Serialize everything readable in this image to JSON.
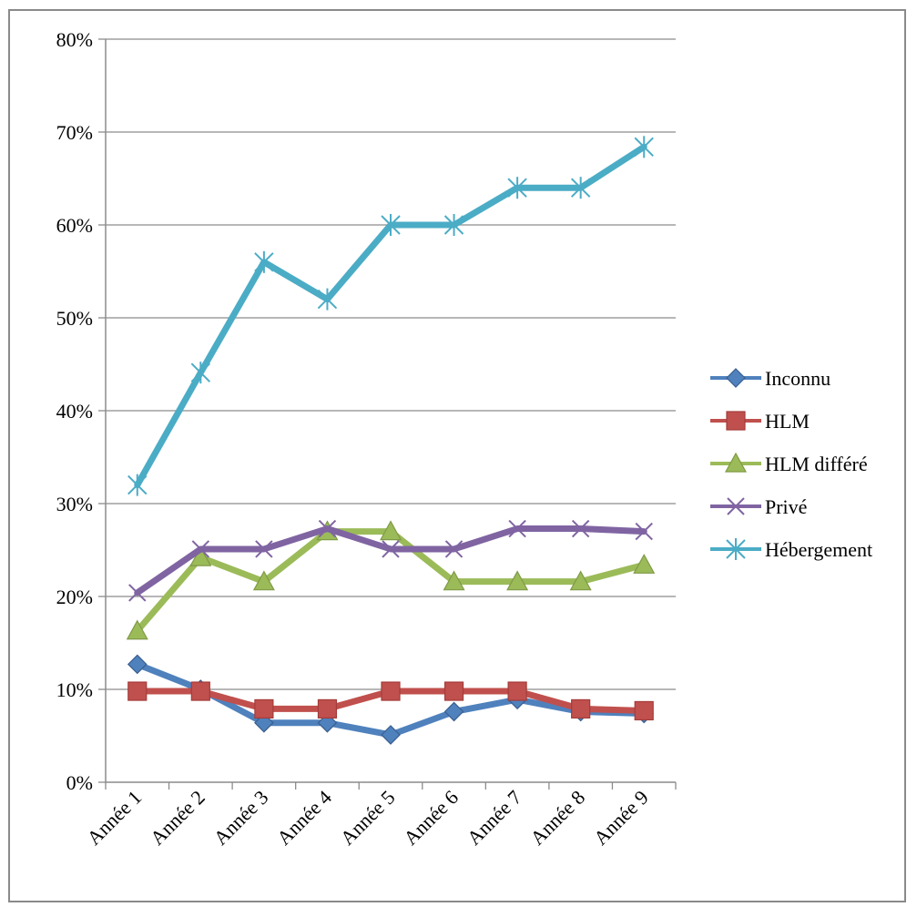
{
  "chart_data": {
    "type": "line",
    "title": "",
    "xlabel": "",
    "ylabel": "",
    "categories": [
      "Année 1",
      "Année 2",
      "Année 3",
      "Année 4",
      "Année 5",
      "Année 6",
      "Année 7",
      "Année 8",
      "Année 9"
    ],
    "y_ticks": [
      "0%",
      "10%",
      "20%",
      "30%",
      "40%",
      "50%",
      "60%",
      "70%",
      "80%"
    ],
    "ylim": [
      0,
      80
    ],
    "grid": true,
    "legend_position": "right",
    "series": [
      {
        "name": "Inconnu",
        "color": "#4f81bd",
        "marker": "diamond",
        "values": [
          12.7,
          10.0,
          6.4,
          6.4,
          5.1,
          7.6,
          8.9,
          7.6,
          7.4
        ]
      },
      {
        "name": "HLM",
        "color": "#c0504d",
        "marker": "square",
        "values": [
          9.8,
          9.8,
          7.9,
          7.9,
          9.8,
          9.8,
          9.8,
          7.9,
          7.7
        ]
      },
      {
        "name": "HLM différé",
        "color": "#9bbb59",
        "marker": "triangle",
        "values": [
          16.3,
          24.2,
          21.6,
          27.0,
          27.0,
          21.6,
          21.6,
          21.6,
          23.4
        ]
      },
      {
        "name": "Privé",
        "color": "#8064a2",
        "marker": "x",
        "values": [
          20.4,
          25.1,
          25.1,
          27.3,
          25.1,
          25.1,
          27.3,
          27.3,
          27.0
        ]
      },
      {
        "name": "Hébergement",
        "color": "#4bacc6",
        "marker": "star",
        "values": [
          32.0,
          44.1,
          56.0,
          52.0,
          60.0,
          60.0,
          64.0,
          64.0,
          68.4
        ]
      }
    ]
  }
}
